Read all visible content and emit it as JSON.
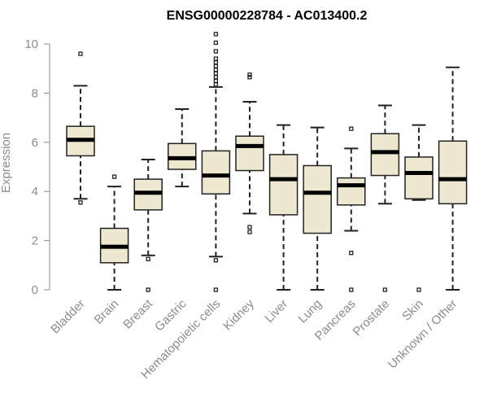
{
  "chart_data": {
    "type": "boxplot",
    "title": "ENSG00000228784 - AC013400.2",
    "ylabel": "Expression",
    "xlabel": "",
    "ylim": [
      0,
      10
    ],
    "yticks": [
      0,
      2,
      4,
      6,
      8,
      10
    ],
    "grid": false,
    "colors": {
      "box_fill": "#efe8d0",
      "box_stroke": "#222222",
      "median": "#000000",
      "axis": "#8c8c8c"
    },
    "categories": [
      "Bladder",
      "Brain",
      "Breast",
      "Gastric",
      "Hematopoietic cells",
      "Kidney",
      "Liver",
      "Lung",
      "Pancreas",
      "Prostate",
      "Skin",
      "Unknown / Other"
    ],
    "boxes": [
      {
        "category": "Bladder",
        "whisker_low": 3.7,
        "q1": 5.45,
        "median": 6.1,
        "q3": 6.65,
        "whisker_high": 8.3,
        "outliers": [
          3.55,
          9.6
        ]
      },
      {
        "category": "Brain",
        "whisker_low": 0.0,
        "q1": 1.1,
        "median": 1.75,
        "q3": 2.5,
        "whisker_high": 4.2,
        "outliers": [
          4.6
        ]
      },
      {
        "category": "Breast",
        "whisker_low": 1.4,
        "q1": 3.25,
        "median": 3.95,
        "q3": 4.5,
        "whisker_high": 5.3,
        "outliers": [
          1.25,
          0.0
        ]
      },
      {
        "category": "Gastric",
        "whisker_low": 4.2,
        "q1": 4.9,
        "median": 5.35,
        "q3": 5.95,
        "whisker_high": 7.35,
        "outliers": []
      },
      {
        "category": "Hematopoietic cells",
        "whisker_low": 1.35,
        "q1": 3.9,
        "median": 4.65,
        "q3": 5.65,
        "whisker_high": 8.25,
        "outliers": [
          1.2,
          0.0,
          8.35,
          8.5,
          8.65,
          8.8,
          8.95,
          9.1,
          9.25,
          9.4,
          9.7,
          10.05,
          10.4
        ]
      },
      {
        "category": "Kidney",
        "whisker_low": 3.1,
        "q1": 4.85,
        "median": 5.85,
        "q3": 6.25,
        "whisker_high": 7.65,
        "outliers": [
          2.55,
          2.35,
          8.65,
          8.75
        ]
      },
      {
        "category": "Liver",
        "whisker_low": 0.0,
        "q1": 3.05,
        "median": 4.5,
        "q3": 5.5,
        "whisker_high": 6.7,
        "outliers": []
      },
      {
        "category": "Lung",
        "whisker_low": 0.0,
        "q1": 2.3,
        "median": 3.95,
        "q3": 5.05,
        "whisker_high": 6.6,
        "outliers": []
      },
      {
        "category": "Pancreas",
        "whisker_low": 2.4,
        "q1": 3.45,
        "median": 4.25,
        "q3": 4.55,
        "whisker_high": 5.75,
        "outliers": [
          1.5,
          0.0,
          6.55
        ]
      },
      {
        "category": "Prostate",
        "whisker_low": 3.5,
        "q1": 4.65,
        "median": 5.6,
        "q3": 6.35,
        "whisker_high": 7.5,
        "outliers": [
          0.0
        ]
      },
      {
        "category": "Skin",
        "whisker_low": 3.65,
        "q1": 3.7,
        "median": 4.75,
        "q3": 5.4,
        "whisker_high": 6.7,
        "outliers": [
          0.0
        ]
      },
      {
        "category": "Unknown / Other",
        "whisker_low": 0.0,
        "q1": 3.5,
        "median": 4.5,
        "q3": 6.05,
        "whisker_high": 9.05,
        "outliers": []
      }
    ]
  }
}
